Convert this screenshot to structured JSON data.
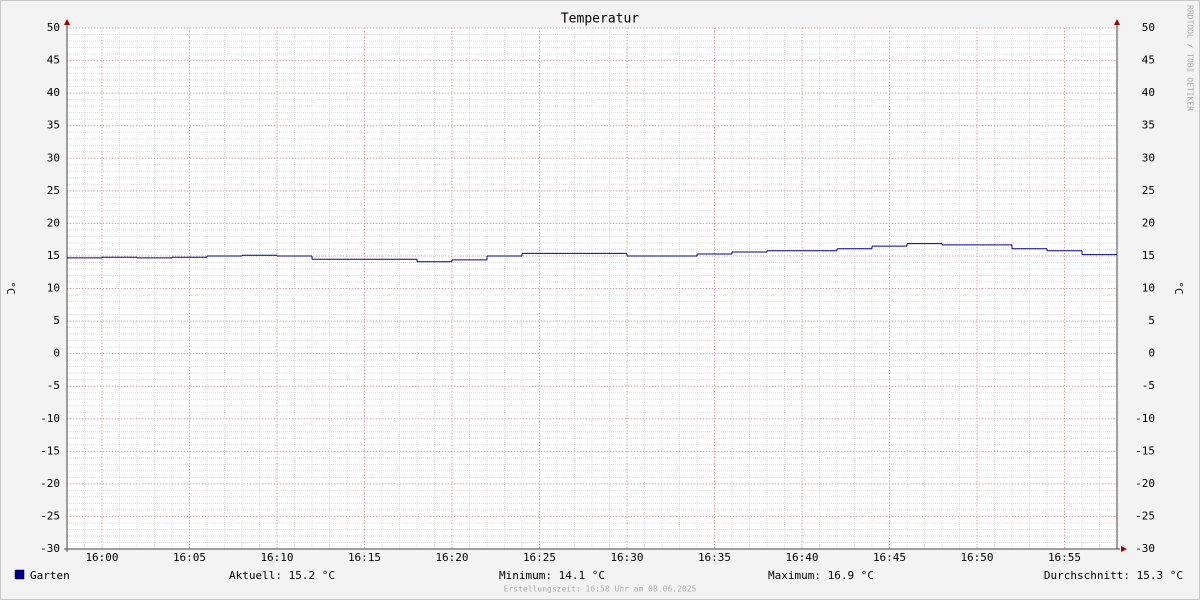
{
  "chart_data": {
    "type": "line",
    "step": true,
    "title": "Temperatur",
    "y_label": "°C",
    "watermark": "RRDTOOL / TOBI OETIKER",
    "x": [
      "15:58",
      "16:00",
      "16:02",
      "16:04",
      "16:06",
      "16:08",
      "16:10",
      "16:12",
      "16:14",
      "16:16",
      "16:18",
      "16:20",
      "16:22",
      "16:24",
      "16:26",
      "16:28",
      "16:30",
      "16:32",
      "16:34",
      "16:36",
      "16:38",
      "16:40",
      "16:42",
      "16:44",
      "16:46",
      "16:48",
      "16:50",
      "16:52",
      "16:54",
      "16:56"
    ],
    "series": [
      {
        "name": "Garten",
        "color": "#00008b",
        "values": [
          14.7,
          14.8,
          14.7,
          14.8,
          15.0,
          15.1,
          15.0,
          14.5,
          14.5,
          14.5,
          14.1,
          14.4,
          15.0,
          15.4,
          15.4,
          15.4,
          15.0,
          15.0,
          15.3,
          15.6,
          15.8,
          15.8,
          16.1,
          16.5,
          16.9,
          16.7,
          16.7,
          16.1,
          15.8,
          15.2
        ]
      }
    ],
    "xlim": [
      "15:58",
      "16:58"
    ],
    "xticks": [
      "16:00",
      "16:05",
      "16:10",
      "16:15",
      "16:20",
      "16:25",
      "16:30",
      "16:35",
      "16:40",
      "16:45",
      "16:50",
      "16:55"
    ],
    "ylim": [
      -30,
      50
    ],
    "yticks": [
      -30,
      -25,
      -20,
      -15,
      -10,
      -5,
      0,
      5,
      10,
      15,
      20,
      25,
      30,
      35,
      40,
      45,
      50
    ],
    "grid": true,
    "minor_grid": true,
    "legend_stats": [
      "Aktuell: 15.2 °C",
      "Minimum: 14.1 °C",
      "Maximum: 16.9 °C",
      "Durchschnitt: 15.3 °C"
    ],
    "footer": "Erstellungszeit: 16:58 Uhr am 08.06.2025"
  }
}
